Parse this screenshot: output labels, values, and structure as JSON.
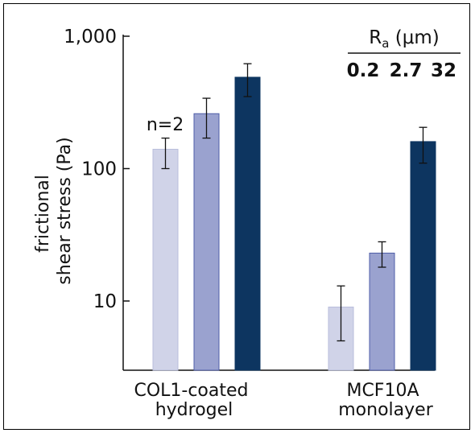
{
  "chart_data": {
    "type": "bar",
    "y_scale": "log",
    "ylim": [
      3,
      1000
    ],
    "ylabel_lines": [
      "frictional",
      "shear stress (Pa)"
    ],
    "y_ticks": [
      {
        "value": 10,
        "label": "10"
      },
      {
        "value": 100,
        "label": "100"
      },
      {
        "value": 1000,
        "label": "1,000"
      }
    ],
    "categories": [
      {
        "lines": [
          "COL1-coated",
          "hydrogel"
        ]
      },
      {
        "lines": [
          "MCF10A",
          "monolayer"
        ]
      }
    ],
    "legend": {
      "title_main": "R",
      "title_sub": "a",
      "title_unit": " (μm)",
      "placement": "top-right"
    },
    "series": [
      {
        "name": "0.2",
        "color": "#d0d3e8",
        "edge": "#b9bedb",
        "label_color": "#c4c8e2",
        "values": [
          140,
          9
        ],
        "err_low": [
          100,
          5
        ],
        "err_high": [
          170,
          13
        ]
      },
      {
        "name": "2.7",
        "color": "#9aa2cf",
        "edge": "#4f5ea8",
        "label_color": "#6b76b8",
        "values": [
          260,
          23
        ],
        "err_low": [
          170,
          18
        ],
        "err_high": [
          340,
          28
        ]
      },
      {
        "name": "32",
        "color": "#0d3560",
        "edge": "#0d3560",
        "label_color": "#0d2b4f",
        "values": [
          490,
          160
        ],
        "err_low": [
          350,
          110
        ],
        "err_high": [
          620,
          205
        ]
      }
    ],
    "annotations": [
      {
        "text": "n=2",
        "category": 0,
        "series": 0
      }
    ]
  }
}
